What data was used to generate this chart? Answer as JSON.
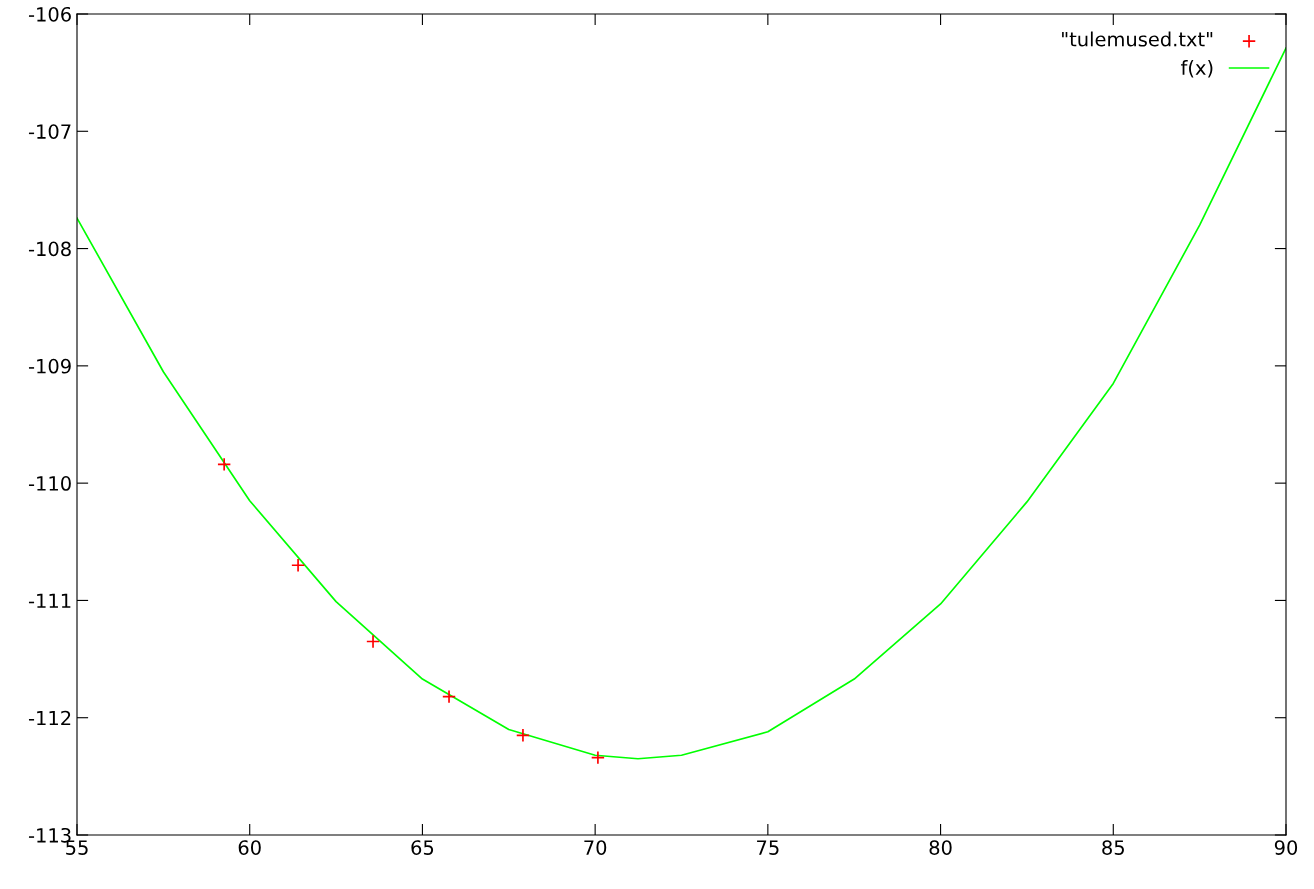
{
  "chart_data": {
    "type": "scatter",
    "xlim": [
      55,
      90
    ],
    "xticks": [
      55,
      60,
      65,
      70,
      75,
      80,
      85,
      90
    ],
    "ylim": [
      -113,
      -106
    ],
    "yticks": [
      {
        "value": -113,
        "label": "-113"
      },
      {
        "value": -112,
        "label": "-112"
      },
      {
        "value": -111,
        "label": "-111"
      },
      {
        "value": -110,
        "label": "-110"
      },
      {
        "value": -109,
        "label": "-109"
      },
      {
        "value": -108,
        "label": "-108"
      },
      {
        "value": -107,
        "label": "-107"
      },
      {
        "value": -106,
        "label": "-106"
      }
    ],
    "grid": false,
    "legend": "top right",
    "series": [
      {
        "name": "\"tulemused.txt\"",
        "marker": "cross",
        "color": "#ff0000",
        "x": [
          59.26,
          61.4,
          63.57,
          65.77,
          67.91,
          70.08
        ],
        "values": [
          -109.84,
          -110.7,
          -111.35,
          -111.82,
          -112.15,
          -112.34
        ]
      },
      {
        "name": "f(x)",
        "type": "line",
        "marker": "none",
        "line_style": "solid",
        "color": "#00ff00",
        "x": [
          55,
          57.5,
          60,
          62.5,
          65,
          67.5,
          70,
          71.24,
          72.5,
          75,
          77.5,
          80,
          82.5,
          85,
          87.5,
          90
        ],
        "values": [
          -107.74,
          -109.05,
          -110.15,
          -111.01,
          -111.67,
          -112.1,
          -112.32,
          -112.35,
          -112.32,
          -112.12,
          -111.67,
          -111.03,
          -110.16,
          -109.15,
          -107.8,
          -106.29
        ]
      }
    ]
  }
}
